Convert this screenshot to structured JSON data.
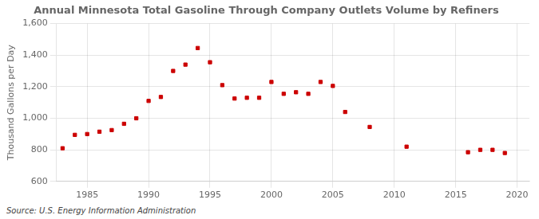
{
  "chart_data": {
    "type": "scatter",
    "title": "Annual Minnesota Total Gasoline Through Company Outlets Volume by Refiners",
    "ylabel": "Thousand Gallons per Day",
    "annotations": [
      "Source: U.S. Energy Information Administration"
    ],
    "color": "#CC0000",
    "marker": "square",
    "grid": true,
    "xlim": [
      1982.5,
      2021
    ],
    "xticks": [
      1985,
      1990,
      1995,
      2000,
      2005,
      2010,
      2015,
      2020
    ],
    "ylim": [
      600,
      1600
    ],
    "yticks": [
      600,
      800,
      {
        "value": 1000,
        "label": "1,000"
      },
      {
        "value": 1200,
        "label": "1,200"
      },
      {
        "value": 1400,
        "label": "1,400"
      },
      {
        "value": 1600,
        "label": "1,600"
      }
    ],
    "x": [
      1983,
      1984,
      1985,
      1986,
      1987,
      1988,
      1989,
      1990,
      1991,
      1992,
      1993,
      1994,
      1995,
      1996,
      1997,
      1998,
      1999,
      2000,
      2001,
      2002,
      2003,
      2004,
      2005,
      2006,
      2008,
      2011,
      2016,
      2017,
      2018,
      2019
    ],
    "values": [
      810,
      895,
      900,
      915,
      925,
      965,
      1000,
      1110,
      1135,
      1300,
      1340,
      1445,
      1355,
      1210,
      1125,
      1130,
      1130,
      1230,
      1155,
      1165,
      1155,
      1230,
      1205,
      1040,
      945,
      820,
      785,
      800,
      800,
      780
    ]
  }
}
